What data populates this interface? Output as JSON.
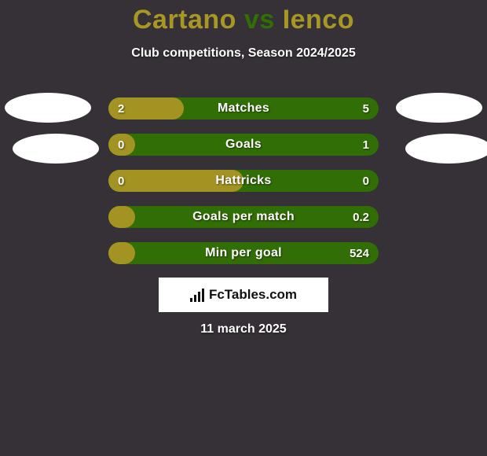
{
  "background_color": "#353136",
  "title": {
    "player1": "Cartano",
    "vs_word": "vs",
    "player2": "Ienco",
    "player1_color": "#a89725",
    "vs_color": "#316f04",
    "player2_color": "#a89725",
    "fontsize": 34
  },
  "subtitle": {
    "text": "Club competitions, Season 2024/2025",
    "fontsize": 16,
    "color": "#ffffff"
  },
  "avatars": {
    "fill": "#ffffff",
    "shape": "ellipse"
  },
  "bars": {
    "track_color": "#326e06",
    "fill_color": "#a39322",
    "text_color": "#ffffff",
    "border_radius": 14,
    "height": 28,
    "gap": 18,
    "label_fontsize": 16,
    "value_fontsize": 15,
    "rows": [
      {
        "label": "Matches",
        "left": "2",
        "right": "5",
        "fill_pct": 28
      },
      {
        "label": "Goals",
        "left": "0",
        "right": "1",
        "fill_pct": 10
      },
      {
        "label": "Hattricks",
        "left": "0",
        "right": "0",
        "fill_pct": 50
      },
      {
        "label": "Goals per match",
        "left": "",
        "right": "0.2",
        "fill_pct": 10
      },
      {
        "label": "Min per goal",
        "left": "",
        "right": "524",
        "fill_pct": 10
      }
    ]
  },
  "brand": {
    "text": "FcTables.com",
    "bg": "#ffffff",
    "fg": "#111111"
  },
  "date": {
    "text": "11 march 2025",
    "fontsize": 16,
    "color": "#ffffff"
  }
}
